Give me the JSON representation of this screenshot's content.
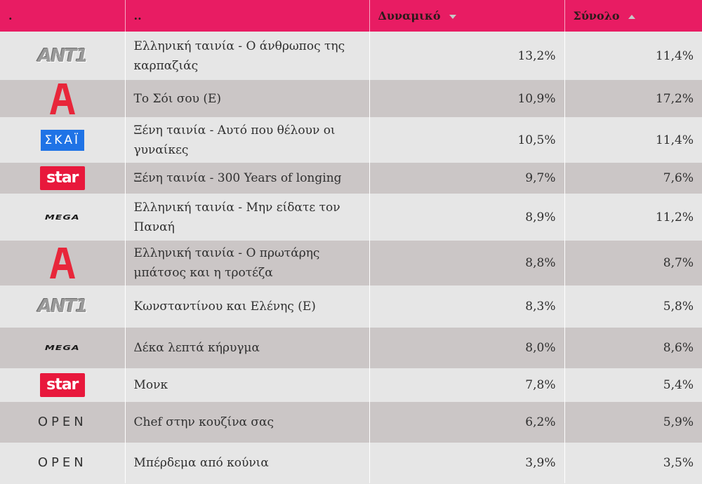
{
  "header": {
    "col_logo": ".",
    "col_title": "..",
    "col_dynamic": "Δυναμικό",
    "col_total": "Σύνολο",
    "dynamic_sort": "descending",
    "total_sort": "ascending"
  },
  "rows": [
    {
      "channel": "ANT1",
      "logo_text": "ANT1",
      "title": "Ελληνική ταινία - Ο άνθρωπος της καρπαζιάς",
      "dynamic": "13,2%",
      "total": "11,4%"
    },
    {
      "channel": "Alpha",
      "logo_text": "",
      "title": "Το Σόι σου (Ε)",
      "dynamic": "10,9%",
      "total": "17,2%"
    },
    {
      "channel": "ΣΚΑΪ",
      "logo_text": "ΣΚΑΪ",
      "title": "Ξένη ταινία - Αυτό που θέλουν οι γυναίκες",
      "dynamic": "10,5%",
      "total": "11,4%"
    },
    {
      "channel": "Star",
      "logo_text": "star",
      "title": "Ξένη ταινία - 300 Years of longing",
      "dynamic": "9,7%",
      "total": "7,6%"
    },
    {
      "channel": "Mega",
      "logo_text": "MEGA",
      "title": "Ελληνική ταινία - Μην είδατε τον Παναή",
      "dynamic": "8,9%",
      "total": "11,2%"
    },
    {
      "channel": "Alpha",
      "logo_text": "",
      "title": "Ελληνική ταινία - Ο πρωτάρης μπάτσος και η τροτέζα",
      "dynamic": "8,8%",
      "total": "8,7%"
    },
    {
      "channel": "ANT1",
      "logo_text": "ANT1",
      "title": "Κωνσταντίνου και Ελένης (Ε)",
      "dynamic": "8,3%",
      "total": "5,8%"
    },
    {
      "channel": "Mega",
      "logo_text": "MEGA",
      "title": "Δέκα λεπτά κήρυγμα",
      "dynamic": "8,0%",
      "total": "8,6%"
    },
    {
      "channel": "Star",
      "logo_text": "star",
      "title": "Μονκ",
      "dynamic": "7,8%",
      "total": "5,4%"
    },
    {
      "channel": "Open",
      "logo_text": "OPEN",
      "title": "Chef στην κουζίνα σας",
      "dynamic": "6,2%",
      "total": "5,9%"
    },
    {
      "channel": "Open",
      "logo_text": "OPEN",
      "title": "Μπέρδεμα από κούνια",
      "dynamic": "3,9%",
      "total": "3,5%"
    }
  ],
  "colors": {
    "header_bg": "#e81c63",
    "row_light": "#e6e6e6",
    "row_dark": "#cbc6c6",
    "star_red": "#e8183c",
    "skai_blue": "#1f73e6",
    "alpha_red": "#e8263a"
  }
}
